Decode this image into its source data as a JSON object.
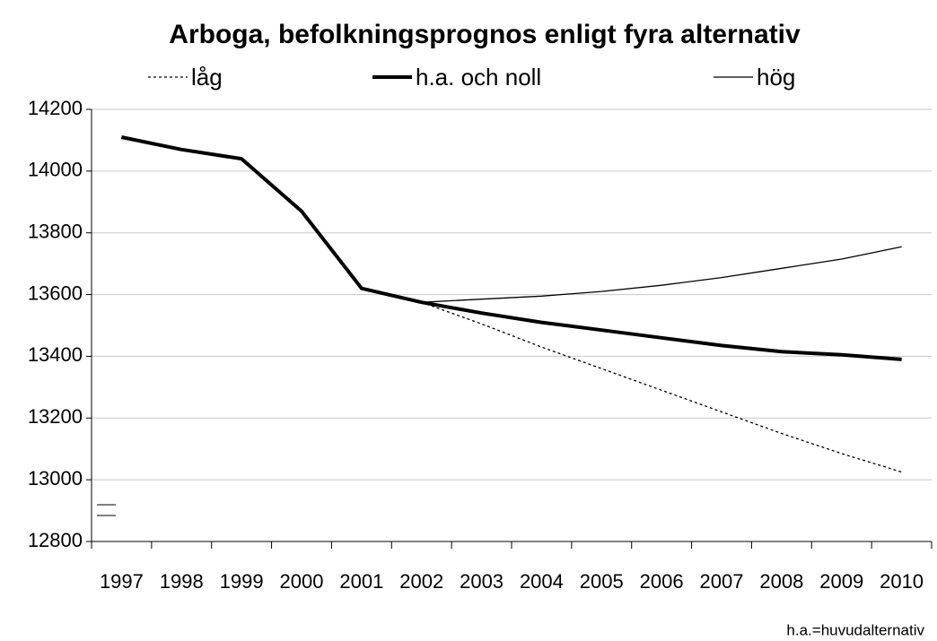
{
  "chart_data": {
    "type": "line",
    "title": "Arboga, befolkningsprognos enligt fyra alternativ",
    "categories": [
      "1997",
      "1998",
      "1999",
      "2000",
      "2001",
      "2002",
      "2003",
      "2004",
      "2005",
      "2006",
      "2007",
      "2008",
      "2009",
      "2010"
    ],
    "series": [
      {
        "name": "låg",
        "color": "#000000",
        "dash": "dotted",
        "values": [
          null,
          null,
          null,
          null,
          null,
          13575,
          13505,
          13430,
          13360,
          13290,
          13220,
          13150,
          13085,
          13025
        ]
      },
      {
        "name": "h.a. och noll",
        "color": "#000000",
        "dash": "solid-thick",
        "values": [
          14110,
          14070,
          14040,
          13870,
          13620,
          13575,
          13540,
          13510,
          13485,
          13460,
          13435,
          13415,
          13405,
          13390
        ]
      },
      {
        "name": "hög",
        "color": "#000000",
        "dash": "solid-thin",
        "values": [
          null,
          null,
          null,
          null,
          null,
          13575,
          13585,
          13595,
          13610,
          13630,
          13655,
          13685,
          13715,
          13755
        ]
      }
    ],
    "ylim": [
      12800,
      14200
    ],
    "yticks": [
      12800,
      13000,
      13200,
      13400,
      13600,
      13800,
      14000,
      14200
    ],
    "grid": true,
    "legend": "top",
    "footnote": "h.a.=huvudalternativ"
  }
}
